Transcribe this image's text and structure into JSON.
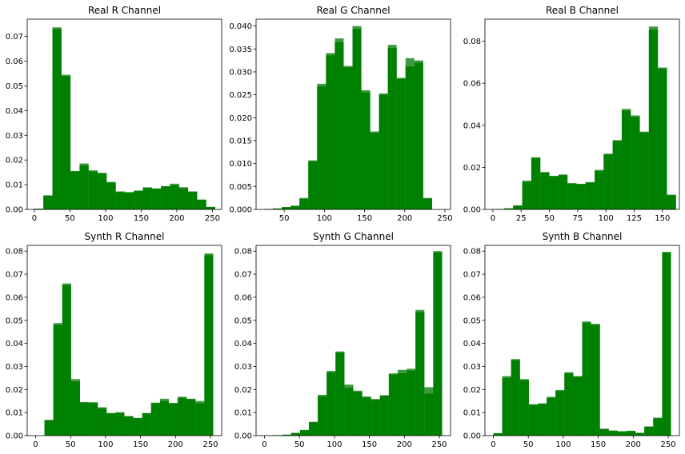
{
  "chart_data": [
    {
      "type": "bar",
      "title": "Real R Channel",
      "xlim": [
        -10,
        263
      ],
      "ylim": [
        0,
        0.077
      ],
      "xticks": [
        0,
        50,
        100,
        150,
        200,
        250
      ],
      "yticks": [
        0.0,
        0.01,
        0.02,
        0.03,
        0.04,
        0.05,
        0.06,
        0.07
      ],
      "ytick_labels": [
        "0.00",
        "0.01",
        "0.02",
        "0.03",
        "0.04",
        "0.05",
        "0.06",
        "0.07"
      ],
      "color": "#008000",
      "overlay_color": "#3f9a3f",
      "bins": [
        [
          0,
          12.7
        ],
        [
          12.7,
          25.4
        ],
        [
          25.4,
          38.1
        ],
        [
          38.1,
          50.8
        ],
        [
          50.8,
          63.5
        ],
        [
          63.5,
          76.2
        ],
        [
          76.2,
          88.9
        ],
        [
          88.9,
          101.6
        ],
        [
          101.6,
          114.3
        ],
        [
          114.3,
          127
        ],
        [
          127,
          139.7
        ],
        [
          139.7,
          152.4
        ],
        [
          152.4,
          165.1
        ],
        [
          165.1,
          177.8
        ],
        [
          177.8,
          190.5
        ],
        [
          190.5,
          203.2
        ],
        [
          203.2,
          215.9
        ],
        [
          215.9,
          228.6
        ],
        [
          228.6,
          241.3
        ],
        [
          241.3,
          254
        ]
      ],
      "series": [
        {
          "values": [
            0.0003,
            0.0057,
            0.0737,
            0.0545,
            0.0151,
            0.0186,
            0.0158,
            0.0148,
            0.0111,
            0.0073,
            0.007,
            0.0076,
            0.0088,
            0.0085,
            0.0093,
            0.0104,
            0.009,
            0.0073,
            0.004,
            0.001
          ]
        },
        {
          "values": [
            0.0003,
            0.0055,
            0.073,
            0.054,
            0.0155,
            0.0178,
            0.0154,
            0.0146,
            0.0109,
            0.007,
            0.0069,
            0.0076,
            0.0089,
            0.0084,
            0.0094,
            0.0098,
            0.0085,
            0.0071,
            0.0039,
            0.001
          ]
        }
      ]
    },
    {
      "type": "bar",
      "title": "Real G Channel",
      "xlim": [
        15,
        257
      ],
      "ylim": [
        0,
        0.0415
      ],
      "xticks": [
        50,
        100,
        150,
        200,
        250
      ],
      "yticks": [
        0.0,
        0.005,
        0.01,
        0.015,
        0.02,
        0.025,
        0.03,
        0.035,
        0.04
      ],
      "ytick_labels": [
        "0.000",
        "0.005",
        "0.010",
        "0.015",
        "0.020",
        "0.025",
        "0.030",
        "0.035",
        "0.040"
      ],
      "color": "#008000",
      "overlay_color": "#3f9a3f",
      "bins": [
        [
          25,
          36
        ],
        [
          36,
          47
        ],
        [
          47,
          58
        ],
        [
          58,
          69
        ],
        [
          69,
          80
        ],
        [
          80,
          91
        ],
        [
          91,
          102
        ],
        [
          102,
          113
        ],
        [
          113,
          124
        ],
        [
          124,
          135
        ],
        [
          135,
          146
        ],
        [
          146,
          157
        ],
        [
          157,
          168
        ],
        [
          168,
          179
        ],
        [
          179,
          190
        ],
        [
          190,
          201
        ],
        [
          201,
          212
        ],
        [
          212,
          223
        ],
        [
          223,
          234
        ],
        [
          234,
          245
        ]
      ],
      "series": [
        {
          "values": [
            0.0001,
            0.0002,
            0.0005,
            0.0008,
            0.0025,
            0.0107,
            0.0274,
            0.0341,
            0.0373,
            0.0313,
            0.04,
            0.026,
            0.017,
            0.0253,
            0.0359,
            0.0287,
            0.033,
            0.0325,
            0.0025,
            0.0
          ]
        },
        {
          "values": [
            0.0001,
            0.0002,
            0.0005,
            0.0008,
            0.0023,
            0.0105,
            0.0268,
            0.0336,
            0.0365,
            0.031,
            0.0394,
            0.0255,
            0.0167,
            0.025,
            0.0352,
            0.0285,
            0.0312,
            0.032,
            0.0024,
            0.0
          ]
        }
      ]
    },
    {
      "type": "bar",
      "title": "Real B Channel",
      "xlim": [
        -7,
        165
      ],
      "ylim": [
        0,
        0.0905
      ],
      "xticks": [
        0,
        25,
        50,
        75,
        100,
        125,
        150
      ],
      "yticks": [
        0.0,
        0.02,
        0.04,
        0.06,
        0.08
      ],
      "ytick_labels": [
        "0.00",
        "0.02",
        "0.04",
        "0.06",
        "0.08"
      ],
      "color": "#008000",
      "overlay_color": "#3f9a3f",
      "bins": [
        [
          2,
          10
        ],
        [
          10,
          18
        ],
        [
          18,
          26
        ],
        [
          26,
          34
        ],
        [
          34,
          42
        ],
        [
          42,
          50
        ],
        [
          50,
          58
        ],
        [
          58,
          66
        ],
        [
          66,
          74
        ],
        [
          74,
          82
        ],
        [
          82,
          90
        ],
        [
          90,
          98
        ],
        [
          98,
          106
        ],
        [
          106,
          114
        ],
        [
          114,
          122
        ],
        [
          122,
          130
        ],
        [
          130,
          138
        ],
        [
          138,
          146
        ],
        [
          146,
          154
        ],
        [
          154,
          162
        ]
      ],
      "series": [
        {
          "values": [
            0.0002,
            0.0005,
            0.0019,
            0.0137,
            0.0248,
            0.0178,
            0.016,
            0.0166,
            0.0125,
            0.0122,
            0.013,
            0.0188,
            0.0265,
            0.033,
            0.0478,
            0.0447,
            0.037,
            0.087,
            0.0675,
            0.007
          ]
        },
        {
          "values": [
            0.0002,
            0.0005,
            0.0019,
            0.013,
            0.0245,
            0.0175,
            0.0157,
            0.0163,
            0.0123,
            0.012,
            0.0128,
            0.0183,
            0.0262,
            0.0325,
            0.047,
            0.044,
            0.0366,
            0.0855,
            0.067,
            0.0068
          ]
        }
      ]
    },
    {
      "type": "bar",
      "title": "Synth R Channel",
      "xlim": [
        -12,
        266
      ],
      "ylim": [
        0,
        0.0825
      ],
      "xticks": [
        0,
        50,
        100,
        150,
        200,
        250
      ],
      "yticks": [
        0.0,
        0.01,
        0.02,
        0.03,
        0.04,
        0.05,
        0.06,
        0.07,
        0.08
      ],
      "ytick_labels": [
        "0.00",
        "0.01",
        "0.02",
        "0.03",
        "0.04",
        "0.05",
        "0.06",
        "0.07",
        "0.08"
      ],
      "color": "#008000",
      "overlay_color": "#3f9a3f",
      "bins": [
        [
          0,
          12.7
        ],
        [
          12.7,
          25.4
        ],
        [
          25.4,
          38.1
        ],
        [
          38.1,
          50.8
        ],
        [
          50.8,
          63.5
        ],
        [
          63.5,
          76.2
        ],
        [
          76.2,
          88.9
        ],
        [
          88.9,
          101.6
        ],
        [
          101.6,
          114.3
        ],
        [
          114.3,
          127
        ],
        [
          127,
          139.7
        ],
        [
          139.7,
          152.4
        ],
        [
          152.4,
          165.1
        ],
        [
          165.1,
          177.8
        ],
        [
          177.8,
          190.5
        ],
        [
          190.5,
          203.2
        ],
        [
          203.2,
          215.9
        ],
        [
          215.9,
          228.6
        ],
        [
          228.6,
          241.3
        ],
        [
          241.3,
          254
        ]
      ],
      "series": [
        {
          "values": [
            0.0,
            0.0068,
            0.0488,
            0.066,
            0.0245,
            0.0146,
            0.0145,
            0.0123,
            0.0098,
            0.0102,
            0.0085,
            0.0077,
            0.0098,
            0.0143,
            0.016,
            0.0141,
            0.0169,
            0.016,
            0.015,
            0.079
          ]
        },
        {
          "values": [
            0.0,
            0.0066,
            0.048,
            0.0652,
            0.0235,
            0.0143,
            0.0141,
            0.0118,
            0.0097,
            0.0097,
            0.0083,
            0.0076,
            0.0097,
            0.014,
            0.015,
            0.0141,
            0.0163,
            0.0158,
            0.014,
            0.0782
          ]
        }
      ]
    },
    {
      "type": "bar",
      "title": "Synth G Channel",
      "xlim": [
        -12,
        266
      ],
      "ylim": [
        0,
        0.0825
      ],
      "xticks": [
        0,
        50,
        100,
        150,
        200,
        250
      ],
      "yticks": [
        0.0,
        0.01,
        0.02,
        0.03,
        0.04,
        0.05,
        0.06,
        0.07,
        0.08
      ],
      "ytick_labels": [
        "0.00",
        "0.01",
        "0.02",
        "0.03",
        "0.04",
        "0.05",
        "0.06",
        "0.07",
        "0.08"
      ],
      "color": "#008000",
      "overlay_color": "#3f9a3f",
      "bins": [
        [
          0,
          12.7
        ],
        [
          12.7,
          25.4
        ],
        [
          25.4,
          38.1
        ],
        [
          38.1,
          50.8
        ],
        [
          50.8,
          63.5
        ],
        [
          63.5,
          76.2
        ],
        [
          76.2,
          88.9
        ],
        [
          88.9,
          101.6
        ],
        [
          101.6,
          114.3
        ],
        [
          114.3,
          127
        ],
        [
          127,
          139.7
        ],
        [
          139.7,
          152.4
        ],
        [
          152.4,
          165.1
        ],
        [
          165.1,
          177.8
        ],
        [
          177.8,
          190.5
        ],
        [
          190.5,
          203.2
        ],
        [
          203.2,
          215.9
        ],
        [
          215.9,
          228.6
        ],
        [
          228.6,
          241.3
        ],
        [
          241.3,
          254
        ]
      ],
      "series": [
        {
          "values": [
            0.0001,
            0.0002,
            0.0004,
            0.0012,
            0.0025,
            0.006,
            0.0177,
            0.028,
            0.0365,
            0.0221,
            0.0195,
            0.017,
            0.0159,
            0.0175,
            0.027,
            0.0285,
            0.029,
            0.0545,
            0.021,
            0.08
          ]
        },
        {
          "values": [
            0.0001,
            0.0002,
            0.0004,
            0.0011,
            0.0023,
            0.0058,
            0.017,
            0.0275,
            0.036,
            0.0207,
            0.019,
            0.0165,
            0.0154,
            0.0173,
            0.0265,
            0.027,
            0.0282,
            0.0535,
            0.0182,
            0.0795
          ]
        }
      ]
    },
    {
      "type": "bar",
      "title": "Synth B Channel",
      "xlim": [
        -12,
        266
      ],
      "ylim": [
        0,
        0.0825
      ],
      "xticks": [
        0,
        50,
        100,
        150,
        200,
        250
      ],
      "yticks": [
        0.0,
        0.01,
        0.02,
        0.03,
        0.04,
        0.05,
        0.06,
        0.07,
        0.08
      ],
      "ytick_labels": [
        "0.00",
        "0.01",
        "0.02",
        "0.03",
        "0.04",
        "0.05",
        "0.06",
        "0.07",
        "0.08"
      ],
      "color": "#008000",
      "overlay_color": "#3f9a3f",
      "bins": [
        [
          0,
          12.7
        ],
        [
          12.7,
          25.4
        ],
        [
          25.4,
          38.1
        ],
        [
          38.1,
          50.8
        ],
        [
          50.8,
          63.5
        ],
        [
          63.5,
          76.2
        ],
        [
          76.2,
          88.9
        ],
        [
          88.9,
          101.6
        ],
        [
          101.6,
          114.3
        ],
        [
          114.3,
          127
        ],
        [
          127,
          139.7
        ],
        [
          139.7,
          152.4
        ],
        [
          152.4,
          165.1
        ],
        [
          165.1,
          177.8
        ],
        [
          177.8,
          190.5
        ],
        [
          190.5,
          203.2
        ],
        [
          203.2,
          215.9
        ],
        [
          215.9,
          228.6
        ],
        [
          228.6,
          241.3
        ],
        [
          241.3,
          254
        ]
      ],
      "series": [
        {
          "values": [
            0.001,
            0.0258,
            0.0332,
            0.0245,
            0.0136,
            0.014,
            0.0168,
            0.0198,
            0.0275,
            0.0258,
            0.0495,
            0.0485,
            0.003,
            0.0022,
            0.0019,
            0.0021,
            0.0012,
            0.004,
            0.0078,
            0.0797
          ]
        },
        {
          "values": [
            0.001,
            0.025,
            0.0327,
            0.0241,
            0.0134,
            0.0138,
            0.0164,
            0.0194,
            0.027,
            0.0255,
            0.049,
            0.048,
            0.0028,
            0.0021,
            0.0018,
            0.002,
            0.0012,
            0.0038,
            0.0075,
            0.0793
          ]
        }
      ]
    }
  ]
}
